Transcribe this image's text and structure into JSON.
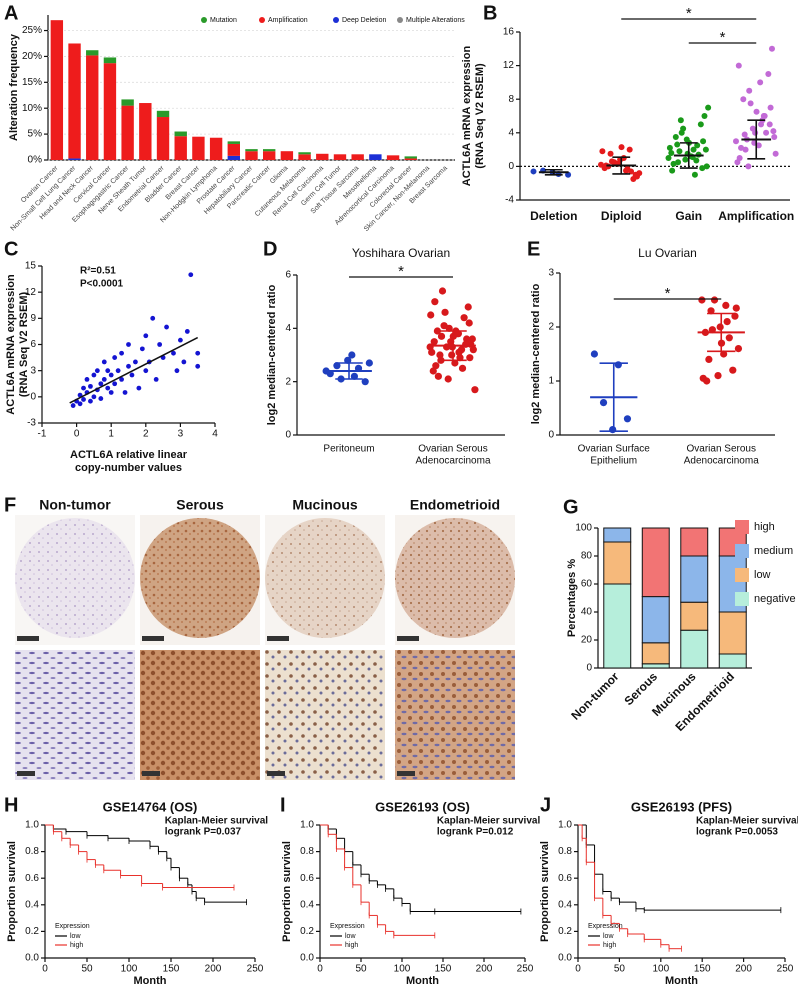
{
  "chart_data": [
    {
      "type": "bar",
      "panel": "A",
      "ylabel": "Alteration frequency",
      "grid": true,
      "legend": "top",
      "categories": [
        "Ovarian Cancer",
        "Non-Small Cell Lung Cancer",
        "Head and Neck Cancer",
        "Cervical Cancer",
        "Esophagogastric Cancer",
        "Nerve Sheath Tumor",
        "Endometrial Cancer",
        "Bladder Cancer",
        "Breast Cancer",
        "Non-Hodgkin Lymphoma",
        "Prostate Cancer",
        "Hepatobiliary Cancer",
        "Pancreatic Cancer",
        "Glioma",
        "Cutaneous Melanoma",
        "Renal Cell Carcinoma",
        "Germ Cell Tumor",
        "Soft Tissue Sarcoma",
        "Mesothelioma",
        "Adrenocortical Carcinoma",
        "Colorectal Cancer",
        "Skin Cancer, Non-Melanoma",
        "Breast Sarcoma"
      ],
      "series": [
        {
          "name": "Mutation",
          "color": "#2a9a2a",
          "values": [
            0,
            0,
            1,
            1.1,
            1.2,
            0,
            1.2,
            0.9,
            0,
            0,
            0.5,
            0.4,
            0.4,
            0,
            0.4,
            0,
            0,
            0,
            0,
            0,
            0.4,
            0,
            0
          ]
        },
        {
          "name": "Amplification",
          "color": "#ee1c1c",
          "values": [
            27,
            22.2,
            20.2,
            18.7,
            10.5,
            11,
            8.3,
            4.6,
            4.5,
            4.3,
            2.3,
            1.7,
            1.7,
            1.7,
            1.1,
            1.2,
            1.1,
            1.1,
            0,
            0.9,
            0.3,
            0,
            0
          ]
        },
        {
          "name": "Deep Deletion",
          "color": "#1c2fd6",
          "values": [
            0,
            0.3,
            0,
            0,
            0,
            0,
            0,
            0,
            0,
            0,
            0.8,
            0,
            0,
            0,
            0,
            0,
            0,
            0,
            1.1,
            0,
            0,
            0,
            0
          ]
        },
        {
          "name": "Multiple Alterations",
          "color": "#888888",
          "values": [
            0,
            0,
            0,
            0,
            0,
            0,
            0,
            0,
            0,
            0,
            0,
            0,
            0,
            0,
            0,
            0,
            0,
            0,
            0,
            0,
            0,
            0,
            0
          ]
        }
      ],
      "ylim": [
        0,
        28
      ],
      "yticks": [
        {
          "value": 0,
          "label": "0%"
        },
        {
          "value": 5,
          "label": "5%"
        },
        {
          "value": 10,
          "label": "10%"
        },
        {
          "value": 15,
          "label": "15%"
        },
        {
          "value": 20,
          "label": "20%"
        },
        {
          "value": 25,
          "label": "25%"
        }
      ]
    },
    {
      "type": "dot",
      "panel": "B",
      "ylabel": [
        "ACTL6A mRNA expression",
        "(RNA Seq V2 RSEM)"
      ],
      "categories": [
        "Deletion",
        "Diploid",
        "Gain",
        "Amplification"
      ],
      "colors": [
        "#1f3fbf",
        "#e41a1c",
        "#1a9a1a",
        "#c26ad6"
      ],
      "err_color": "#111111",
      "points": [
        [
          -0.6,
          -0.9,
          -0.5,
          -1.0,
          -0.7
        ],
        [
          0.2,
          -0.5,
          1.5,
          -1,
          0.8,
          -0.2,
          2,
          0.5,
          -0.8,
          1,
          0,
          -1.5,
          0.3,
          1.8,
          -0.3,
          0.6,
          -1.2,
          2.3,
          0.1,
          -0.6
        ],
        [
          1,
          2,
          0.5,
          3,
          1.5,
          -0.5,
          2.5,
          4,
          0,
          1.2,
          3.5,
          5,
          0.8,
          2.2,
          -1,
          1.8,
          6,
          2.8,
          0.3,
          1.4,
          4.5,
          7,
          1.1,
          2.6,
          -0.2,
          3.2,
          1.6,
          0.7,
          5.5,
          2
        ],
        [
          3,
          5,
          2,
          7,
          4,
          1,
          6,
          9,
          3.5,
          2.5,
          8,
          11,
          4.5,
          0.5,
          5.5,
          3.2,
          14,
          6.5,
          2.2,
          4,
          7.5,
          1.5,
          10,
          3.8,
          5,
          2.8,
          12,
          6,
          0,
          4.2
        ]
      ],
      "means": [
        -0.7,
        0.1,
        1.3,
        3.2
      ],
      "sd": [
        0.3,
        1.0,
        1.5,
        2.3
      ],
      "refline": 0,
      "significance": [
        {
          "pair": [
            1,
            3
          ],
          "label": "*"
        },
        {
          "pair": [
            2,
            3
          ],
          "label": "*"
        }
      ],
      "ylim": [
        -4,
        16
      ],
      "yticks": [
        -4,
        0,
        4,
        8,
        12,
        16
      ]
    },
    {
      "type": "scatter",
      "panel": "C",
      "ylabel": [
        "ACTL6A mRNA expression",
        "(RNA Seq V2 RSEM)"
      ],
      "xlabel": [
        "ACTL6A relative linear",
        "copy-number values"
      ],
      "color": "#1414d2",
      "annotations": [
        "R²=0.51",
        "P<0.0001"
      ],
      "x": [
        -0.1,
        0,
        0.1,
        0.1,
        0.2,
        0.2,
        0.3,
        0.3,
        0.4,
        0.4,
        0.5,
        0.5,
        0.6,
        0.6,
        0.7,
        0.7,
        0.8,
        0.8,
        0.9,
        0.9,
        1,
        1,
        1.1,
        1.1,
        1.2,
        1.3,
        1.3,
        1.4,
        1.5,
        1.5,
        1.6,
        1.7,
        1.8,
        1.9,
        2,
        2,
        2.1,
        2.2,
        2.3,
        2.4,
        2.5,
        2.6,
        2.8,
        2.9,
        3,
        3.1,
        3.2,
        3.3,
        3.5,
        3.5
      ],
      "values": [
        -1,
        -0.5,
        0.2,
        -0.8,
        1,
        -0.3,
        0.5,
        2,
        -0.5,
        1.2,
        0,
        2.5,
        0.8,
        3,
        1.5,
        -0.2,
        2,
        4,
        1,
        3,
        0.5,
        2.5,
        4.5,
        1.5,
        3,
        5,
        2,
        0.5,
        3.5,
        6,
        2.5,
        4,
        1,
        5.5,
        3,
        7,
        4,
        9,
        2,
        6,
        4.5,
        8,
        5,
        3,
        6.5,
        4,
        7.5,
        14,
        3.5,
        5
      ],
      "fit": {
        "x": [
          -0.2,
          3.5
        ],
        "values": [
          -0.7,
          6.8
        ]
      },
      "xlim": [
        -1,
        4
      ],
      "xticks": [
        -1,
        0,
        1,
        2,
        3,
        4
      ],
      "ylim": [
        -3,
        15
      ],
      "yticks": [
        -3,
        0,
        3,
        6,
        9,
        12,
        15
      ]
    },
    {
      "type": "dot",
      "panel": "D",
      "title": "Yoshihara Ovarian",
      "ylabel": "log2 median-centered ratio",
      "categories": [
        [
          "Peritoneum"
        ],
        [
          "Ovarian Serous",
          "Adenocarcinoma"
        ]
      ],
      "colors": [
        "#1f3fbf",
        "#d7191c"
      ],
      "points": [
        [
          2.4,
          2.2,
          2.6,
          2.0,
          2.8,
          2.3,
          2.5,
          2.1,
          2.7,
          3.0
        ],
        [
          3.3,
          3.8,
          2.8,
          4.2,
          3.0,
          3.5,
          2.5,
          4.6,
          3.2,
          3.9,
          2.2,
          3.6,
          4.0,
          3.1,
          2.9,
          5.4,
          3.4,
          3.7,
          2.6,
          4.4,
          3.3,
          1.7,
          3.8,
          3.0,
          4.8,
          3.5,
          2.4,
          3.2,
          4.1,
          3.6,
          2.7,
          3.9,
          3.4,
          2.1,
          4.5,
          3.1,
          3.7,
          2.9,
          3.3,
          5.0
        ]
      ],
      "means": [
        2.4,
        3.35
      ],
      "sd": [
        0.3,
        0.55
      ],
      "significance": [
        {
          "pair": [
            0,
            1
          ],
          "label": "*"
        }
      ],
      "ylim": [
        0,
        6
      ],
      "yticks": [
        0,
        2,
        4,
        6
      ]
    },
    {
      "type": "dot",
      "panel": "E",
      "title": "Lu Ovarian",
      "ylabel": "log2 median-centered ratio",
      "categories": [
        [
          "Ovarian Surface",
          "Epithelium"
        ],
        [
          "Ovarian Serous",
          "Adenocarcinoma"
        ]
      ],
      "colors": [
        "#1f3fbf",
        "#d7191c"
      ],
      "points": [
        [
          1.5,
          1.3,
          0.6,
          0.3,
          0.1
        ],
        [
          2.5,
          2.4,
          2.3,
          2.2,
          2.0,
          1.9,
          1.8,
          2.5,
          1.6,
          1.5,
          1.4,
          1.2,
          1.1,
          1.05,
          2.1,
          1.95,
          2.35,
          1.7,
          1.0
        ]
      ],
      "means": [
        0.7,
        1.9
      ],
      "sd": [
        0.63,
        0.35
      ],
      "significance": [
        {
          "pair": [
            0,
            1
          ],
          "label": "*"
        }
      ],
      "ylim": [
        0,
        3
      ],
      "yticks": [
        0,
        1,
        2,
        3
      ]
    },
    {
      "type": "bar",
      "panel": "G",
      "ylabel": "Percentages %",
      "legend": "right",
      "edgecolor": "#111111",
      "categories": [
        "Non-tumor",
        "Serous",
        "Mucinous",
        "Endometrioid"
      ],
      "series": [
        {
          "name": "high",
          "color": "#f27474",
          "values": [
            0,
            49,
            20,
            20
          ]
        },
        {
          "name": "medium",
          "color": "#8cb6ea",
          "values": [
            10,
            33,
            33,
            40
          ]
        },
        {
          "name": "low",
          "color": "#f6b97b",
          "values": [
            30,
            15,
            20,
            30
          ]
        },
        {
          "name": "negative",
          "color": "#b6eedb",
          "values": [
            60,
            3,
            27,
            10
          ]
        }
      ],
      "ylim": [
        0,
        100
      ],
      "yticks": [
        0,
        20,
        40,
        60,
        80,
        100
      ]
    },
    {
      "type": "km",
      "panel": "H",
      "title": "GSE14764 (OS)",
      "ylabel": "Proportion survival",
      "xlabel": "Month",
      "annotations": [
        "Kaplan-Meier survival",
        "logrank P=0.037"
      ],
      "legend_title": "Expression",
      "series": [
        {
          "name": "low",
          "color": "#000000",
          "x": [
            0,
            10,
            25,
            50,
            75,
            100,
            125,
            135,
            145,
            150,
            160,
            170,
            175,
            180,
            190,
            240
          ],
          "values": [
            1,
            0.97,
            0.95,
            0.92,
            0.9,
            0.88,
            0.84,
            0.8,
            0.75,
            0.68,
            0.6,
            0.55,
            0.5,
            0.45,
            0.42,
            0.42
          ]
        },
        {
          "name": "high",
          "color": "#e8312b",
          "x": [
            0,
            10,
            20,
            30,
            40,
            50,
            60,
            70,
            90,
            115,
            140,
            225
          ],
          "values": [
            1,
            0.95,
            0.9,
            0.85,
            0.8,
            0.74,
            0.7,
            0.66,
            0.62,
            0.56,
            0.53,
            0.53
          ]
        }
      ],
      "xlim": [
        0,
        250
      ],
      "xticks": [
        0,
        50,
        100,
        150,
        200,
        250
      ],
      "ylim": [
        0,
        1
      ],
      "yticks": [
        {
          "value": 0,
          "label": "0.0"
        },
        0.2,
        0.4,
        0.6,
        0.8,
        {
          "value": 1,
          "label": "1.0"
        }
      ]
    },
    {
      "type": "km",
      "panel": "I",
      "title": "GSE26193 (OS)",
      "ylabel": "Proportion survival",
      "xlabel": "Month",
      "annotations": [
        "Kaplan-Meier survival",
        "logrank P=0.012"
      ],
      "legend_title": "Expression",
      "series": [
        {
          "name": "low",
          "color": "#000000",
          "x": [
            0,
            10,
            20,
            30,
            40,
            50,
            60,
            70,
            80,
            90,
            100,
            110,
            140,
            245
          ],
          "values": [
            1,
            0.97,
            0.9,
            0.8,
            0.7,
            0.63,
            0.58,
            0.55,
            0.52,
            0.45,
            0.41,
            0.35,
            0.35,
            0.35
          ]
        },
        {
          "name": "high",
          "color": "#e8312b",
          "x": [
            0,
            10,
            20,
            30,
            40,
            50,
            60,
            70,
            80,
            90,
            140
          ],
          "values": [
            1,
            0.93,
            0.82,
            0.68,
            0.55,
            0.42,
            0.32,
            0.25,
            0.2,
            0.17,
            0.17
          ]
        }
      ],
      "xlim": [
        0,
        250
      ],
      "xticks": [
        0,
        50,
        100,
        150,
        200,
        250
      ],
      "ylim": [
        0,
        1
      ],
      "yticks": [
        {
          "value": 0,
          "label": "0.0"
        },
        0.2,
        0.4,
        0.6,
        0.8,
        {
          "value": 1,
          "label": "1.0"
        }
      ]
    },
    {
      "type": "km",
      "panel": "J",
      "title": "GSE26193 (PFS)",
      "ylabel": "Proportion survival",
      "xlabel": "Month",
      "annotations": [
        "Kaplan-Meier survival",
        "logrank P=0.0053"
      ],
      "legend_title": "Expression",
      "series": [
        {
          "name": "low",
          "color": "#000000",
          "x": [
            0,
            10,
            20,
            30,
            40,
            50,
            70,
            80,
            245
          ],
          "values": [
            1,
            0.85,
            0.63,
            0.5,
            0.45,
            0.42,
            0.37,
            0.36,
            0.36
          ]
        },
        {
          "name": "high",
          "color": "#e8312b",
          "x": [
            0,
            5,
            10,
            20,
            30,
            40,
            50,
            60,
            80,
            100,
            110,
            125
          ],
          "values": [
            1,
            0.9,
            0.72,
            0.45,
            0.32,
            0.26,
            0.22,
            0.18,
            0.14,
            0.1,
            0.07,
            0.07
          ]
        }
      ],
      "xlim": [
        0,
        250
      ],
      "xticks": [
        0,
        50,
        100,
        150,
        200,
        250
      ],
      "ylim": [
        0,
        1
      ],
      "yticks": [
        {
          "value": 0,
          "label": "0.0"
        },
        0.2,
        0.4,
        0.6,
        0.8,
        {
          "value": 1,
          "label": "1.0"
        }
      ]
    }
  ],
  "image_panel": {
    "panel": "F",
    "columns": [
      "Non-tumor",
      "Serous",
      "Mucinous",
      "Endometrioid"
    ]
  }
}
